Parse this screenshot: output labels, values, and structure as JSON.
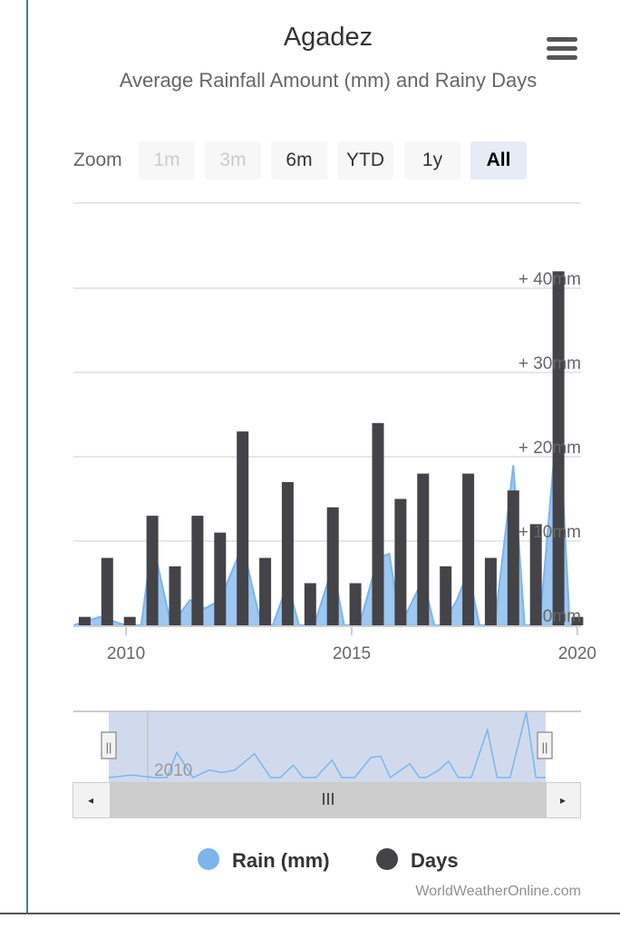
{
  "title": "Agadez",
  "subtitle": "Average Rainfall Amount (mm) and Rainy Days",
  "zoom": {
    "label": "Zoom",
    "buttons": [
      {
        "label": "1m",
        "state": "disabled"
      },
      {
        "label": "3m",
        "state": "disabled"
      },
      {
        "label": "6m",
        "state": "normal"
      },
      {
        "label": "YTD",
        "state": "normal"
      },
      {
        "label": "1y",
        "state": "normal"
      },
      {
        "label": "All",
        "state": "active"
      }
    ]
  },
  "menu_icon": "hamburger-menu-icon",
  "navigator": {
    "label": "2010",
    "scroll_grip": "III",
    "left_arrow": "◂",
    "right_arrow": "▸",
    "handle_glyph": "||"
  },
  "legend": [
    {
      "name": "Rain (mm)",
      "color": "#7cb5ec"
    },
    {
      "name": "Days",
      "color": "#434348"
    }
  ],
  "credits": "WorldWeatherOnline.com",
  "colors": {
    "rain": "#7cb5ec",
    "days": "#434348",
    "grid": "#e6e6e6",
    "navigator_mask": "rgba(102,133,194,0.3)"
  },
  "chart_data": {
    "type": "bar",
    "x_axis": {
      "type": "datetime",
      "tick_labels": [
        "2010",
        "2015",
        "2020"
      ],
      "range": [
        "2008-11",
        "2020-02"
      ]
    },
    "y_axis": {
      "tick_labels": [
        "0mm",
        "+ 10mm",
        "+ 20mm",
        "+ 30mm",
        "+ 40mm"
      ],
      "range": [
        0,
        40
      ],
      "unit": "mm",
      "grid": true
    },
    "legend_position": "bottom-center",
    "series": [
      {
        "name": "Days",
        "type": "column",
        "x": [
          "2009-02",
          "2009-08",
          "2010-02",
          "2010-08",
          "2011-02",
          "2011-08",
          "2012-02",
          "2012-08",
          "2013-02",
          "2013-08",
          "2014-02",
          "2014-08",
          "2015-02",
          "2015-08",
          "2016-02",
          "2016-08",
          "2017-02",
          "2017-08",
          "2018-02",
          "2018-08",
          "2019-02",
          "2019-08",
          "2020-01"
        ],
        "y": [
          1,
          8,
          1,
          13,
          7,
          13,
          11,
          23,
          8,
          17,
          5,
          14,
          5,
          24,
          15,
          18,
          7,
          18,
          8,
          16,
          12,
          42,
          1
        ]
      },
      {
        "name": "Rain (mm)",
        "type": "area",
        "x": [
          "2008-11",
          "2009-06",
          "2010-01",
          "2010-05",
          "2010-08",
          "2011-01",
          "2011-06",
          "2011-10",
          "2012-02",
          "2012-08",
          "2013-01",
          "2013-04",
          "2013-08",
          "2013-11",
          "2014-03",
          "2014-08",
          "2014-11",
          "2015-03",
          "2015-08",
          "2015-11",
          "2016-02",
          "2016-08",
          "2016-11",
          "2017-01",
          "2017-05",
          "2017-08",
          "2017-11",
          "2018-03",
          "2018-08",
          "2018-11",
          "2019-03",
          "2019-08",
          "2019-11",
          "2020-02"
        ],
        "y": [
          0,
          1,
          0,
          0,
          10,
          0,
          3,
          2,
          3,
          9.5,
          0,
          0,
          5,
          0,
          0,
          7,
          0,
          0,
          8,
          8.5,
          0,
          5.5,
          0,
          0,
          3,
          6.5,
          0,
          0,
          19,
          0,
          0,
          26,
          0,
          0
        ]
      }
    ]
  }
}
